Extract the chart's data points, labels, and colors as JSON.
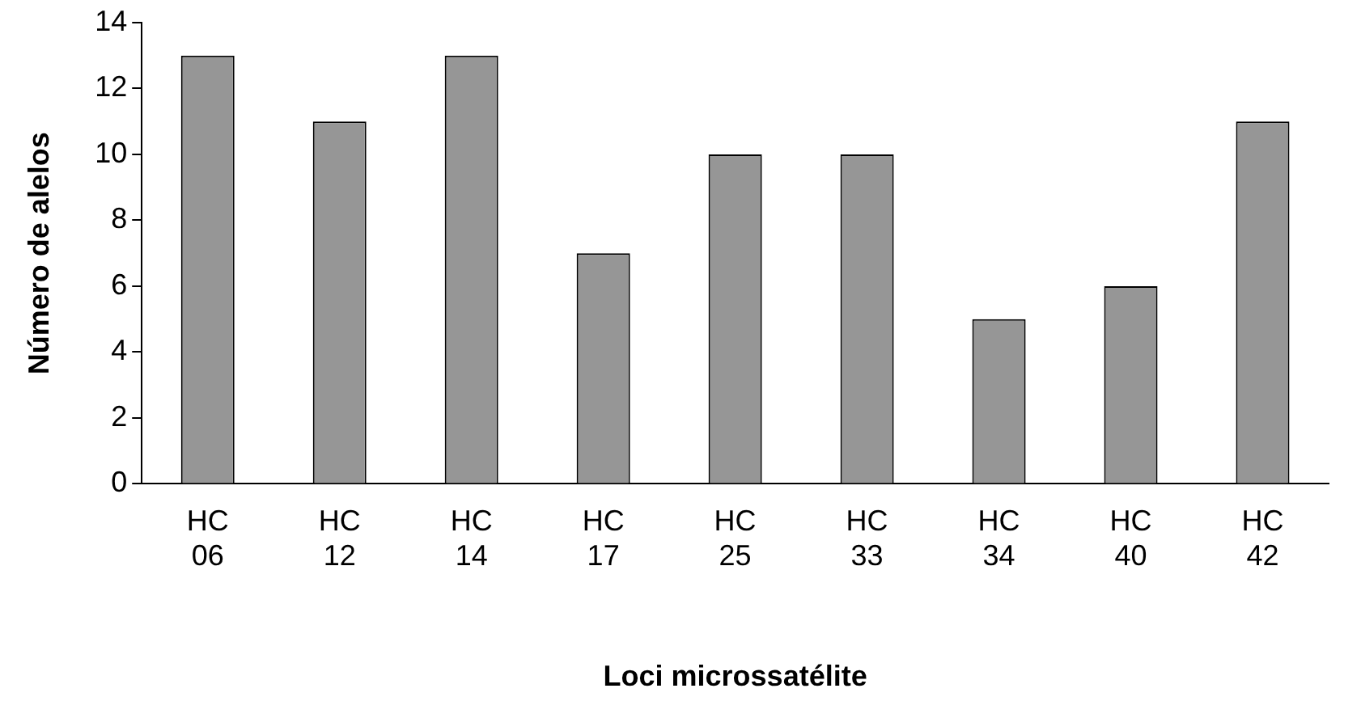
{
  "chart_data": {
    "type": "bar",
    "xlabel": "Loci microssatélite",
    "ylabel": "Número de alelos",
    "categories": [
      "HC 06",
      "HC 12",
      "HC 14",
      "HC 17",
      "HC 25",
      "HC 33",
      "HC 34",
      "HC 40",
      "HC 42"
    ],
    "values": [
      13,
      11,
      13,
      7,
      10,
      10,
      5,
      6,
      11
    ],
    "color": "#969696",
    "ylim": [
      0,
      14
    ],
    "yticks": [
      0,
      2,
      4,
      6,
      8,
      10,
      12,
      14
    ],
    "grid": false,
    "legend": false
  }
}
